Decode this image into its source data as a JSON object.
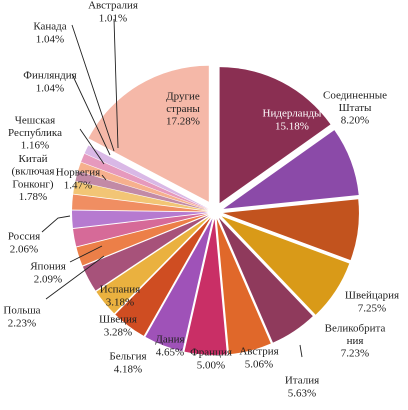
{
  "chart_data": {
    "type": "pie",
    "exploded": true,
    "unit": "%",
    "slices": [
      {
        "name": "Нидерланды",
        "value": 15.18,
        "label": "15.18%",
        "color": "#8a2f52"
      },
      {
        "name": "Соединенные Штаты",
        "value": 8.2,
        "label": "8.20%",
        "color": "#8b4aa8"
      },
      {
        "name": "Швейцария",
        "value": 7.25,
        "label": "7.25%",
        "color": "#c2531e"
      },
      {
        "name": "Великобритания",
        "value": 7.23,
        "label": "7.23%",
        "color": "#d99a18"
      },
      {
        "name": "Италия",
        "value": 5.63,
        "label": "5.63%",
        "color": "#8f3a5c"
      },
      {
        "name": "Австрия",
        "value": 5.06,
        "label": "5.06%",
        "color": "#e0682a"
      },
      {
        "name": "Франция",
        "value": 5.0,
        "label": "5.00%",
        "color": "#c92f66"
      },
      {
        "name": "Дания",
        "value": 4.65,
        "label": "4.65%",
        "color": "#9f52b8"
      },
      {
        "name": "Бельгия",
        "value": 4.18,
        "label": "4.18%",
        "color": "#cf4d22"
      },
      {
        "name": "Швеция",
        "value": 3.28,
        "label": "3.28%",
        "color": "#eab13f"
      },
      {
        "name": "Испания",
        "value": 3.18,
        "label": "3.18%",
        "color": "#a7527a"
      },
      {
        "name": "Польша",
        "value": 2.23,
        "label": "2.23%",
        "color": "#ec7f48"
      },
      {
        "name": "Япония",
        "value": 2.09,
        "label": "2.09%",
        "color": "#d66a98"
      },
      {
        "name": "Россия",
        "value": 2.06,
        "label": "2.06%",
        "color": "#b67ad0"
      },
      {
        "name": "Китай (включая Гонконг)",
        "value": 1.78,
        "label": "1.78%",
        "color": "#f08e62"
      },
      {
        "name": "Норвегия",
        "value": 1.47,
        "label": "1.47%",
        "color": "#f2c575"
      },
      {
        "name": "Чешская Республика",
        "value": 1.16,
        "label": "1.16%",
        "color": "#c28aa6"
      },
      {
        "name": "Финляндия",
        "value": 1.04,
        "label": "1.04%",
        "color": "#f6b08d"
      },
      {
        "name": "Канада",
        "value": 1.04,
        "label": "1.04%",
        "color": "#e699bd"
      },
      {
        "name": "Австралия",
        "value": 1.01,
        "label": "1.01%",
        "color": "#d9b8e6"
      },
      {
        "name": "Другие страны",
        "value": 17.28,
        "label": "17.28%",
        "color": "#f5b8a8"
      }
    ]
  }
}
